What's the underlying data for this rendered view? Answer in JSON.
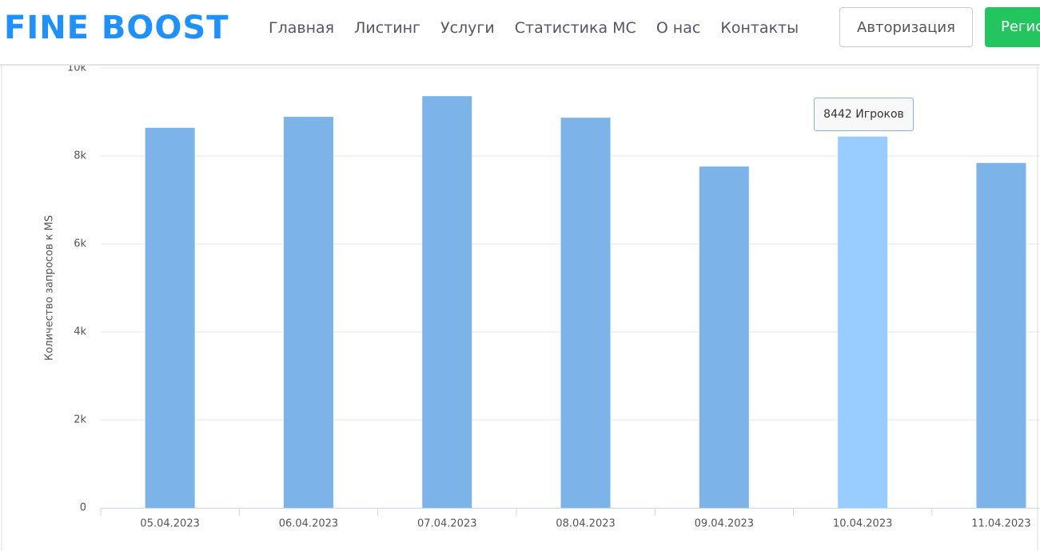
{
  "header": {
    "logo": "FINE BOOST",
    "nav": [
      "Главная",
      "Листинг",
      "Услуги",
      "Статистика MC",
      "О нас",
      "Контакты"
    ],
    "login": "Авторизация",
    "register": "Регистрация"
  },
  "chart_data": {
    "type": "bar",
    "y_label": "Количество запросов к MS",
    "categories": [
      "05.04.2023",
      "06.04.2023",
      "07.04.2023",
      "08.04.2023",
      "09.04.2023",
      "10.04.2023",
      "11.04.2023"
    ],
    "values": [
      8640,
      8890,
      9360,
      8870,
      7760,
      8442,
      7840
    ],
    "colors": [
      "#7cb4ea",
      "#7cb4ea",
      "#7cb4ea",
      "#7cb4ea",
      "#7cb4ea",
      "#99ccff",
      "#7cb4ea"
    ],
    "tooltip": "8442 Игроков",
    "ylim": [
      0,
      10000
    ],
    "yticks": [
      0,
      {
        "value": 2000,
        "label": "2k"
      },
      {
        "value": 4000,
        "label": "4k"
      },
      {
        "value": 6000,
        "label": "6k"
      },
      {
        "value": 8000,
        "label": "8k"
      },
      {
        "value": 10000,
        "label": "10k"
      }
    ],
    "grid": true
  }
}
